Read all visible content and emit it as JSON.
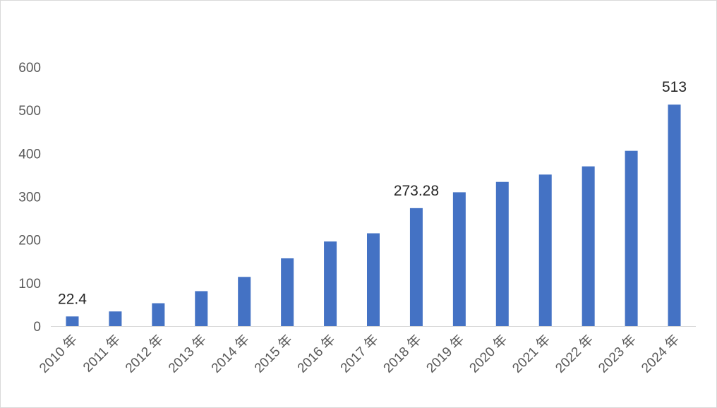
{
  "chart_data": {
    "type": "bar",
    "title": "",
    "xlabel": "",
    "ylabel": "",
    "categories": [
      "2010 年",
      "2011 年",
      "2012 年",
      "2013 年",
      "2014 年",
      "2015 年",
      "2016 年",
      "2017 年",
      "2018 年",
      "2019 年",
      "2020 年",
      "2021 年",
      "2022 年",
      "2023 年",
      "2024 年"
    ],
    "values": [
      22.4,
      34,
      53,
      81,
      114,
      157,
      196,
      215,
      273.28,
      310,
      334,
      351,
      370,
      406,
      513
    ],
    "data_labels": [
      {
        "index": 0,
        "text": "22.4"
      },
      {
        "index": 8,
        "text": "273.28"
      },
      {
        "index": 14,
        "text": "513"
      }
    ],
    "ylim": [
      0,
      600
    ],
    "yticks": [
      "0",
      "100",
      "200",
      "300",
      "400",
      "500",
      "600"
    ],
    "grid": false,
    "legend": "none",
    "bar_color": "#4472c4",
    "axis_color": "#d9d9d9",
    "tick_color": "#595959"
  }
}
